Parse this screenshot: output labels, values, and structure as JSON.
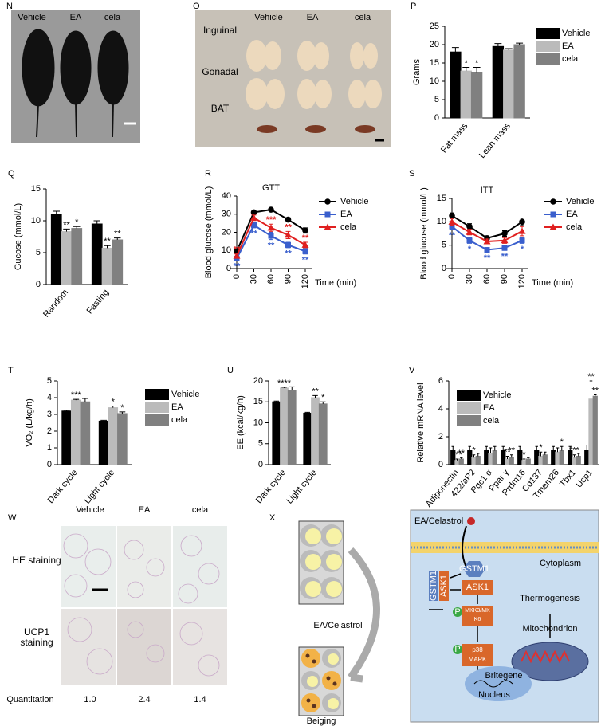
{
  "chart_data": [
    {
      "type": "bar",
      "panel": "P",
      "ylabel": "Grams",
      "categories": [
        "Fat mass",
        "Lean mass"
      ],
      "ylim": [
        0,
        25
      ],
      "yticks": [
        0,
        5,
        10,
        15,
        20,
        25
      ],
      "legend": "outside right",
      "series": [
        {
          "name": "Vehicle",
          "color": "#000000",
          "values": [
            18,
            19.5
          ],
          "errors": [
            1.2,
            0.8
          ],
          "stars": [
            null,
            null
          ]
        },
        {
          "name": "EA",
          "color": "#bbbbbb",
          "values": [
            12.8,
            18.5
          ],
          "errors": [
            1,
            0.4
          ],
          "stars": [
            "*",
            null
          ]
        },
        {
          "name": "cela",
          "color": "#808080",
          "values": [
            12.5,
            20
          ],
          "errors": [
            1.3,
            0.4
          ],
          "stars": [
            "*",
            null
          ]
        }
      ]
    },
    {
      "type": "bar",
      "panel": "Q",
      "ylabel": "Gucose (mmol/L)",
      "categories": [
        "Random",
        "Fasting"
      ],
      "ylim": [
        0,
        15
      ],
      "yticks": [
        0,
        5,
        10,
        15
      ],
      "series": [
        {
          "color": "#000000",
          "values": [
            11,
            9.5
          ],
          "errors": [
            0.5,
            0.5
          ],
          "stars": [
            null,
            null
          ]
        },
        {
          "color": "#bbbbbb",
          "values": [
            8.3,
            5.7
          ],
          "errors": [
            0.4,
            0.4
          ],
          "stars": [
            "**",
            "**"
          ]
        },
        {
          "color": "#808080",
          "values": [
            8.8,
            7
          ],
          "errors": [
            0.3,
            0.3
          ],
          "stars": [
            "*",
            "**"
          ]
        }
      ]
    },
    {
      "type": "line",
      "panel": "R",
      "title": "GTT",
      "ylabel": "Blood glucose (mmol/L)",
      "xlabel": "Time (min)",
      "x": [
        0,
        30,
        60,
        90,
        120
      ],
      "xlim": [
        0,
        120
      ],
      "xticks": [
        0,
        30,
        60,
        90,
        120
      ],
      "ylim": [
        0,
        40
      ],
      "yticks": [
        0,
        10,
        20,
        30,
        40
      ],
      "legend": "upper right",
      "series": [
        {
          "name": "Vehicle",
          "color": "#000000",
          "marker": "circle",
          "values": [
            9.5,
            31,
            32.5,
            27,
            21
          ],
          "errors": [
            1,
            1,
            1,
            1,
            1.5
          ],
          "stars": [
            null,
            null,
            null,
            null,
            null
          ]
        },
        {
          "name": "EA",
          "color": "#3a5fcd",
          "marker": "square",
          "values": [
            5.5,
            24,
            18,
            13,
            9.5
          ],
          "errors": [
            1,
            1.5,
            2,
            1.5,
            1.5
          ],
          "stars": [
            "**",
            "**",
            "**",
            "**",
            "**"
          ]
        },
        {
          "name": "cela",
          "color": "#e02020",
          "marker": "triangle",
          "values": [
            7,
            28,
            22.5,
            18.5,
            13
          ],
          "errors": [
            1,
            1.5,
            2,
            2,
            1.5
          ],
          "stars": [
            "**",
            null,
            "***",
            "**",
            "**"
          ]
        }
      ]
    },
    {
      "type": "line",
      "panel": "S",
      "title": "ITT",
      "ylabel": "Blood glucose (mmol/L)",
      "xlabel": "Time (min)",
      "x": [
        0,
        30,
        60,
        90,
        120
      ],
      "xlim": [
        0,
        120
      ],
      "xticks": [
        0,
        30,
        60,
        90,
        120
      ],
      "ylim": [
        0,
        15
      ],
      "yticks": [
        0,
        5,
        10,
        15
      ],
      "legend": "upper right",
      "series": [
        {
          "name": "Vehicle",
          "color": "#000000",
          "marker": "circle",
          "values": [
            11.3,
            9,
            6.5,
            7.5,
            10
          ],
          "errors": [
            0.6,
            0.6,
            0.5,
            0.6,
            0.8
          ],
          "stars": [
            null,
            null,
            null,
            null,
            null
          ]
        },
        {
          "name": "EA",
          "color": "#3a5fcd",
          "marker": "square",
          "values": [
            9,
            6,
            4,
            4.4,
            6
          ],
          "errors": [
            0.6,
            0.6,
            0.4,
            0.5,
            0.6
          ],
          "stars": [
            "**",
            "*",
            "**",
            "**",
            "*"
          ]
        },
        {
          "name": "cela",
          "color": "#e02020",
          "marker": "triangle",
          "values": [
            10,
            7.8,
            5.8,
            6,
            8
          ],
          "errors": [
            0.7,
            0.6,
            0.5,
            0.6,
            1
          ],
          "stars": [
            null,
            null,
            null,
            null,
            null
          ]
        }
      ]
    },
    {
      "type": "bar",
      "panel": "T",
      "ylabel": "VO₂ (L/kg/h)",
      "categories": [
        "Dark cycle",
        "Light cycle"
      ],
      "ylim": [
        0,
        5
      ],
      "yticks": [
        0,
        1,
        2,
        3,
        4,
        5
      ],
      "legend": "outside right",
      "series": [
        {
          "name": "Vehicle",
          "color": "#000000",
          "values": [
            3.2,
            2.6
          ],
          "errors": [
            0.05,
            0.05
          ],
          "stars": [
            null,
            null
          ]
        },
        {
          "name": "EA",
          "color": "#bbbbbb",
          "values": [
            3.85,
            3.4
          ],
          "errors": [
            0.05,
            0.1
          ],
          "stars": [
            "***",
            "*"
          ]
        },
        {
          "name": "cela",
          "color": "#808080",
          "values": [
            3.75,
            3.05
          ],
          "errors": [
            0.2,
            0.1
          ],
          "stars": [
            null,
            "*"
          ]
        }
      ]
    },
    {
      "type": "bar",
      "panel": "U",
      "ylabel": "EE (kcal/kg/h)",
      "categories": [
        "Dark cycle",
        "Light cycle"
      ],
      "ylim": [
        0,
        20
      ],
      "yticks": [
        0,
        5,
        10,
        15,
        20
      ],
      "series": [
        {
          "color": "#000000",
          "values": [
            15,
            12.3
          ],
          "errors": [
            0.2,
            0.2
          ],
          "stars": [
            null,
            null
          ]
        },
        {
          "color": "#bbbbbb",
          "values": [
            18.3,
            16
          ],
          "errors": [
            0.2,
            0.5
          ],
          "stars": [
            "****",
            "**"
          ]
        },
        {
          "color": "#808080",
          "values": [
            17.8,
            14.5
          ],
          "errors": [
            0.8,
            0.5
          ],
          "stars": [
            null,
            "*"
          ]
        }
      ]
    },
    {
      "type": "bar",
      "panel": "V",
      "ylabel": "Relative mRNA level",
      "categories": [
        "Adiponectin",
        "422/aP2",
        "Pgc1 α",
        "Ppar γ",
        "Prdm16",
        "Cd137",
        "Tmem26",
        "Tbx1",
        "Ucp1"
      ],
      "ylim": [
        0,
        6
      ],
      "yticks": [
        0,
        2,
        4,
        6
      ],
      "legend": "upper left",
      "series": [
        {
          "name": "Vehicle",
          "color": "#000000",
          "values": [
            1,
            1,
            1,
            1,
            1,
            1,
            1,
            1,
            1
          ],
          "errors": [
            0.3,
            0.3,
            0.3,
            0.3,
            0.3,
            0.3,
            0.3,
            0.3,
            0.4
          ],
          "stars": [
            null,
            null,
            null,
            null,
            null,
            null,
            null,
            null,
            null
          ]
        },
        {
          "name": "EA",
          "color": "#bbbbbb",
          "values": [
            0.3,
            0.5,
            0.8,
            0.4,
            0.3,
            0.6,
            0.9,
            0.5,
            4.7
          ],
          "errors": [
            0.1,
            0.2,
            0.4,
            0.2,
            0.1,
            0.3,
            0.3,
            0.2,
            1.3
          ],
          "stars": [
            "***",
            "*",
            null,
            "**",
            "*",
            "*",
            null,
            "***",
            "**"
          ]
        },
        {
          "name": "cela",
          "color": "#808080",
          "values": [
            0.4,
            0.6,
            1,
            0.5,
            0.4,
            0.7,
            1,
            0.6,
            4.9
          ],
          "errors": [
            0.1,
            0.2,
            0.3,
            0.2,
            0.1,
            0.2,
            0.3,
            0.2,
            0.1
          ],
          "stars": [
            "**",
            null,
            null,
            "**",
            null,
            null,
            "*",
            null,
            "**"
          ]
        }
      ]
    }
  ],
  "photo_panels": [
    {
      "panel": "N",
      "columns": [
        "Vehicle",
        "EA",
        "cela"
      ]
    },
    {
      "panel": "O",
      "columns": [
        "Vehicle",
        "EA",
        "cela"
      ],
      "rows": [
        "Inguinal",
        "Gonadal",
        "BAT"
      ]
    },
    {
      "panel": "W",
      "columns": [
        "Vehicle",
        "EA",
        "cela"
      ],
      "rows": [
        "HE staining",
        "UCP1 staining"
      ],
      "quantitation": {
        "label": "Quantitation",
        "values": [
          "1.0",
          "2.4",
          "1.4"
        ]
      }
    }
  ],
  "diagram": {
    "panel": "X",
    "stimulus": "EA/Celastrol",
    "caption": "Beiging",
    "cell": {
      "stimulus": "EA/Celastrol",
      "compartment": "Cytoplasm",
      "complex": [
        "GSTM1",
        "ASK1"
      ],
      "free_gstm1": "GSTM1",
      "cascade": [
        "ASK1",
        "MKK3/MKK6",
        "p38 MAPK"
      ],
      "phospho": [
        "P",
        "P"
      ],
      "output": "Thermogenesis",
      "mitochondrion": "Mitochondrion",
      "gene": "Britegene",
      "nucleus": "Nucleus"
    }
  }
}
